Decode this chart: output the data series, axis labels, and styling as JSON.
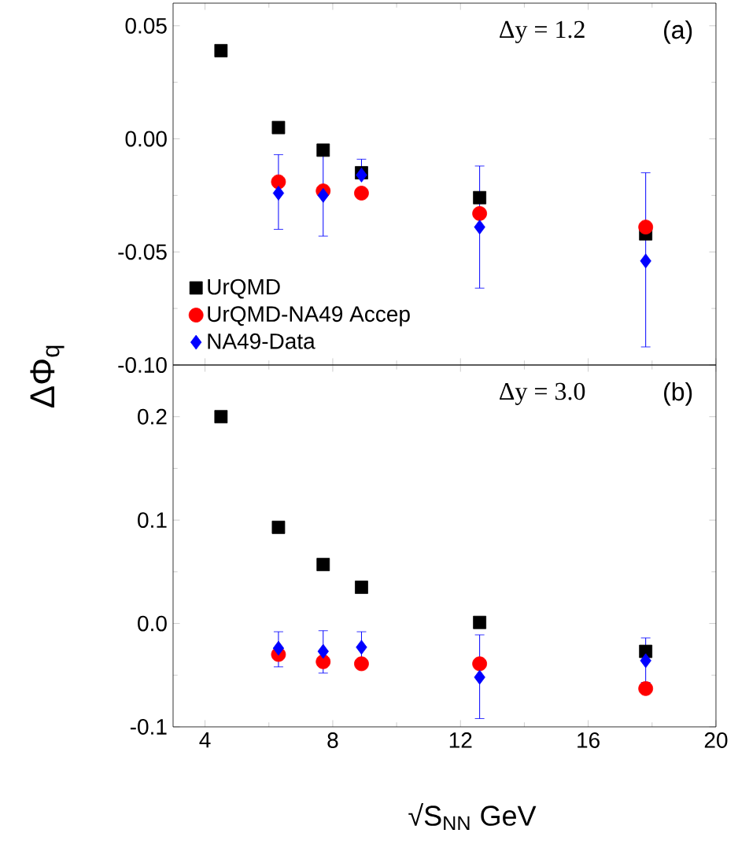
{
  "chart_data": [
    {
      "type": "scatter",
      "ylabel": "ΔΦ$_{q}$",
      "annotations": [
        "Δy = 1.2",
        "(a)"
      ],
      "xlim": [
        3,
        20
      ],
      "xticks": [
        4,
        8,
        12,
        16,
        20
      ],
      "ylim": [
        -0.1,
        0.06
      ],
      "yticks": [
        {
          "value": -0.1,
          "label": "-0.10"
        },
        {
          "value": -0.05,
          "label": "-0.05"
        },
        {
          "value": 0,
          "label": "0.00"
        },
        {
          "value": 0.05,
          "label": "0.05"
        }
      ],
      "tick_labels": "y",
      "legend": "bottom left",
      "grid": false,
      "series": [
        {
          "name": "UrQMD",
          "color": "#000000",
          "marker": "square",
          "x": [
            4.5,
            6.3,
            7.7,
            8.9,
            12.6,
            17.8
          ],
          "values": [
            0.039,
            0.005,
            -0.005,
            -0.015,
            -0.026,
            -0.042
          ]
        },
        {
          "name": "UrQMD-NA49 Accep",
          "color": "#ff0000",
          "marker": "circle",
          "x": [
            6.3,
            7.7,
            8.9,
            12.6,
            17.8
          ],
          "values": [
            -0.019,
            -0.023,
            -0.024,
            -0.033,
            -0.039
          ]
        },
        {
          "name": "NA49-Data",
          "color": "#0000ff",
          "marker": "diamond",
          "x": [
            6.3,
            7.7,
            8.9,
            12.6,
            17.8
          ],
          "values": [
            -0.024,
            -0.025,
            -0.016,
            -0.039,
            -0.054
          ],
          "errors": [
            [
              -0.04,
              -0.007
            ],
            [
              -0.043,
              -0.007
            ],
            [
              -0.016,
              -0.009
            ],
            [
              -0.066,
              -0.012
            ],
            [
              -0.092,
              -0.015
            ]
          ]
        }
      ]
    },
    {
      "type": "scatter",
      "xlabel": "√S$_{NN}$ GeV",
      "annotations": [
        "Δy = 3.0",
        "(b)"
      ],
      "xlim": [
        3,
        20
      ],
      "xticks": [
        4,
        8,
        12,
        16,
        20
      ],
      "ylim": [
        -0.1,
        0.25
      ],
      "yticks": [
        -0.1,
        {
          "value": 0,
          "label": "0.0"
        },
        0.1,
        0.2
      ],
      "grid": false,
      "series": [
        {
          "color": "#000000",
          "marker": "square",
          "x": [
            4.5,
            6.3,
            7.7,
            8.9,
            12.6,
            17.8
          ],
          "values": [
            0.2,
            0.093,
            0.057,
            0.035,
            0.001,
            -0.027
          ]
        },
        {
          "color": "#ff0000",
          "marker": "circle",
          "x": [
            6.3,
            7.7,
            8.9,
            12.6,
            17.8
          ],
          "values": [
            -0.03,
            -0.037,
            -0.039,
            -0.039,
            -0.063
          ]
        },
        {
          "color": "#0000ff",
          "marker": "diamond",
          "x": [
            6.3,
            7.7,
            8.9,
            12.6,
            17.8
          ],
          "values": [
            -0.024,
            -0.027,
            -0.023,
            -0.052,
            -0.036
          ],
          "errors": [
            [
              -0.042,
              -0.008
            ],
            [
              -0.048,
              -0.007
            ],
            [
              -0.04,
              -0.008
            ],
            [
              -0.092,
              -0.011
            ],
            [
              -0.057,
              -0.014
            ]
          ]
        }
      ]
    }
  ]
}
